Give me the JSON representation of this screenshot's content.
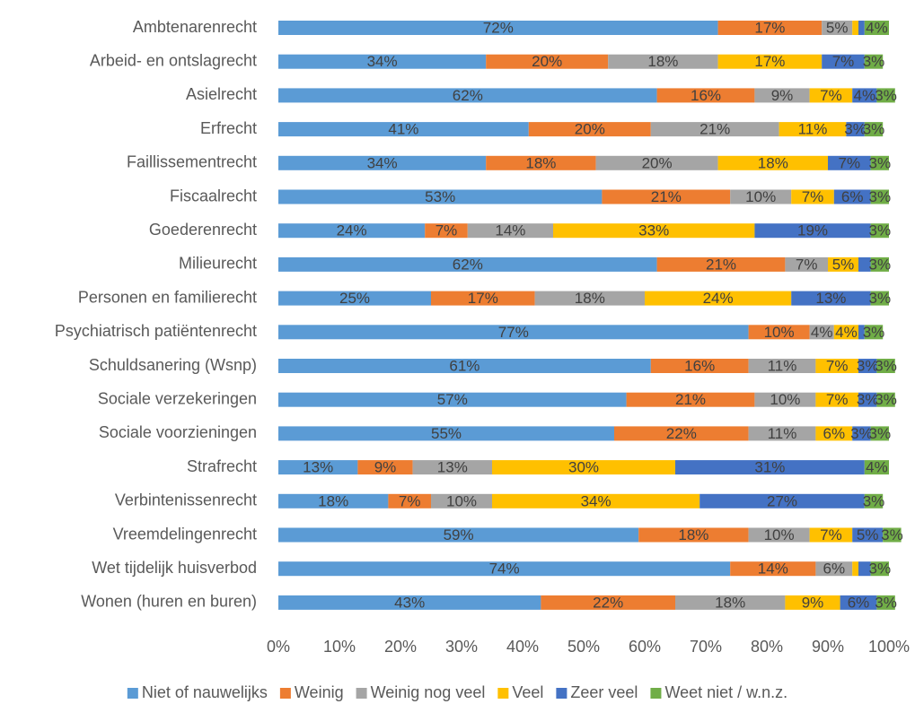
{
  "chart_data": {
    "type": "stacked-barh",
    "categories": [
      "Ambtenarenrecht",
      "Arbeid- en ontslagrecht",
      "Asielrecht",
      "Erfrecht",
      "Faillissementrecht",
      "Fiscaalrecht",
      "Goederenrecht",
      "Milieurecht",
      "Personen en familierecht",
      "Psychiatrisch patiëntenrecht",
      "Schuldsanering (Wsnp)",
      "Sociale verzekeringen",
      "Sociale voorzieningen",
      "Strafrecht",
      "Verbintenissenrecht",
      "Vreemdelingenrecht",
      "Wet tijdelijk huisverbod",
      "Wonen (huren en buren)"
    ],
    "series": [
      {
        "name": "Niet of nauwelijks",
        "color": "#5b9bd5",
        "values": [
          72,
          34,
          62,
          41,
          34,
          53,
          24,
          62,
          25,
          77,
          61,
          57,
          55,
          13,
          18,
          59,
          74,
          43
        ],
        "value_labels": [
          "72%",
          "34%",
          "62%",
          "41%",
          "34%",
          "53%",
          "24%",
          "62%",
          "25%",
          "77%",
          "61%",
          "57%",
          "55%",
          "13%",
          "18%",
          "59%",
          "74%",
          "43%"
        ]
      },
      {
        "name": "Weinig",
        "color": "#ed7d31",
        "values": [
          17,
          20,
          16,
          20,
          18,
          21,
          7,
          21,
          17,
          10,
          16,
          21,
          22,
          9,
          7,
          18,
          14,
          22
        ],
        "value_labels": [
          "17%",
          "20%",
          "16%",
          "20%",
          "18%",
          "21%",
          "7%",
          "21%",
          "17%",
          "10%",
          "16%",
          "21%",
          "22%",
          "9%",
          "7%",
          "18%",
          "14%",
          "22%"
        ]
      },
      {
        "name": "Weinig nog veel",
        "color": "#a5a5a5",
        "values": [
          5,
          18,
          9,
          21,
          20,
          10,
          14,
          7,
          18,
          4,
          11,
          10,
          11,
          13,
          10,
          10,
          6,
          18
        ],
        "value_labels": [
          "5%",
          "18%",
          "9%",
          "21%",
          "20%",
          "10%",
          "14%",
          "7%",
          "18%",
          "4%",
          "11%",
          "10%",
          "11%",
          "13%",
          "10%",
          "10%",
          "6%",
          "18%"
        ]
      },
      {
        "name": "Veel",
        "color": "#ffc000",
        "values": [
          1,
          17,
          7,
          11,
          18,
          7,
          33,
          5,
          24,
          4,
          7,
          7,
          6,
          30,
          34,
          7,
          1,
          9
        ],
        "value_labels": [
          null,
          "17%",
          "7%",
          "11%",
          "18%",
          "7%",
          "33%",
          "5%",
          "24%",
          "4%",
          "7%",
          "7%",
          "6%",
          "30%",
          "34%",
          "7%",
          null,
          "9%"
        ]
      },
      {
        "name": "Zeer veel",
        "color": "#4472c4",
        "values": [
          1,
          7,
          4,
          3,
          7,
          6,
          19,
          2,
          13,
          1,
          3,
          3,
          3,
          31,
          27,
          5,
          2,
          6
        ],
        "value_labels": [
          null,
          "7%",
          "4%",
          "3%",
          "7%",
          "6%",
          "19%",
          null,
          "13%",
          null,
          "3%",
          "3%",
          "3%",
          "31%",
          "27%",
          "5%",
          null,
          "6%"
        ]
      },
      {
        "name": "Weet niet / w.n.z.",
        "color": "#70ad47",
        "values": [
          4,
          3,
          3,
          3,
          3,
          3,
          3,
          3,
          3,
          3,
          3,
          3,
          3,
          4,
          3,
          3,
          3,
          3
        ],
        "value_labels": [
          "4%",
          "3%",
          "3%",
          "3%",
          "3%",
          "3%",
          "3%",
          "3%",
          "3%",
          "3%",
          "3%",
          "3%",
          "3%",
          "4%",
          "3%",
          "3%",
          "3%",
          "3%"
        ]
      }
    ],
    "xlim": [
      0,
      100
    ],
    "xticks": [
      {
        "value": 0,
        "label": "0%"
      },
      {
        "value": 10,
        "label": "10%"
      },
      {
        "value": 20,
        "label": "20%"
      },
      {
        "value": 30,
        "label": "30%"
      },
      {
        "value": 40,
        "label": "40%"
      },
      {
        "value": 50,
        "label": "50%"
      },
      {
        "value": 60,
        "label": "60%"
      },
      {
        "value": 70,
        "label": "70%"
      },
      {
        "value": 80,
        "label": "80%"
      },
      {
        "value": 90,
        "label": "90%"
      },
      {
        "value": 100,
        "label": "100%"
      }
    ],
    "legend": "bottom"
  }
}
